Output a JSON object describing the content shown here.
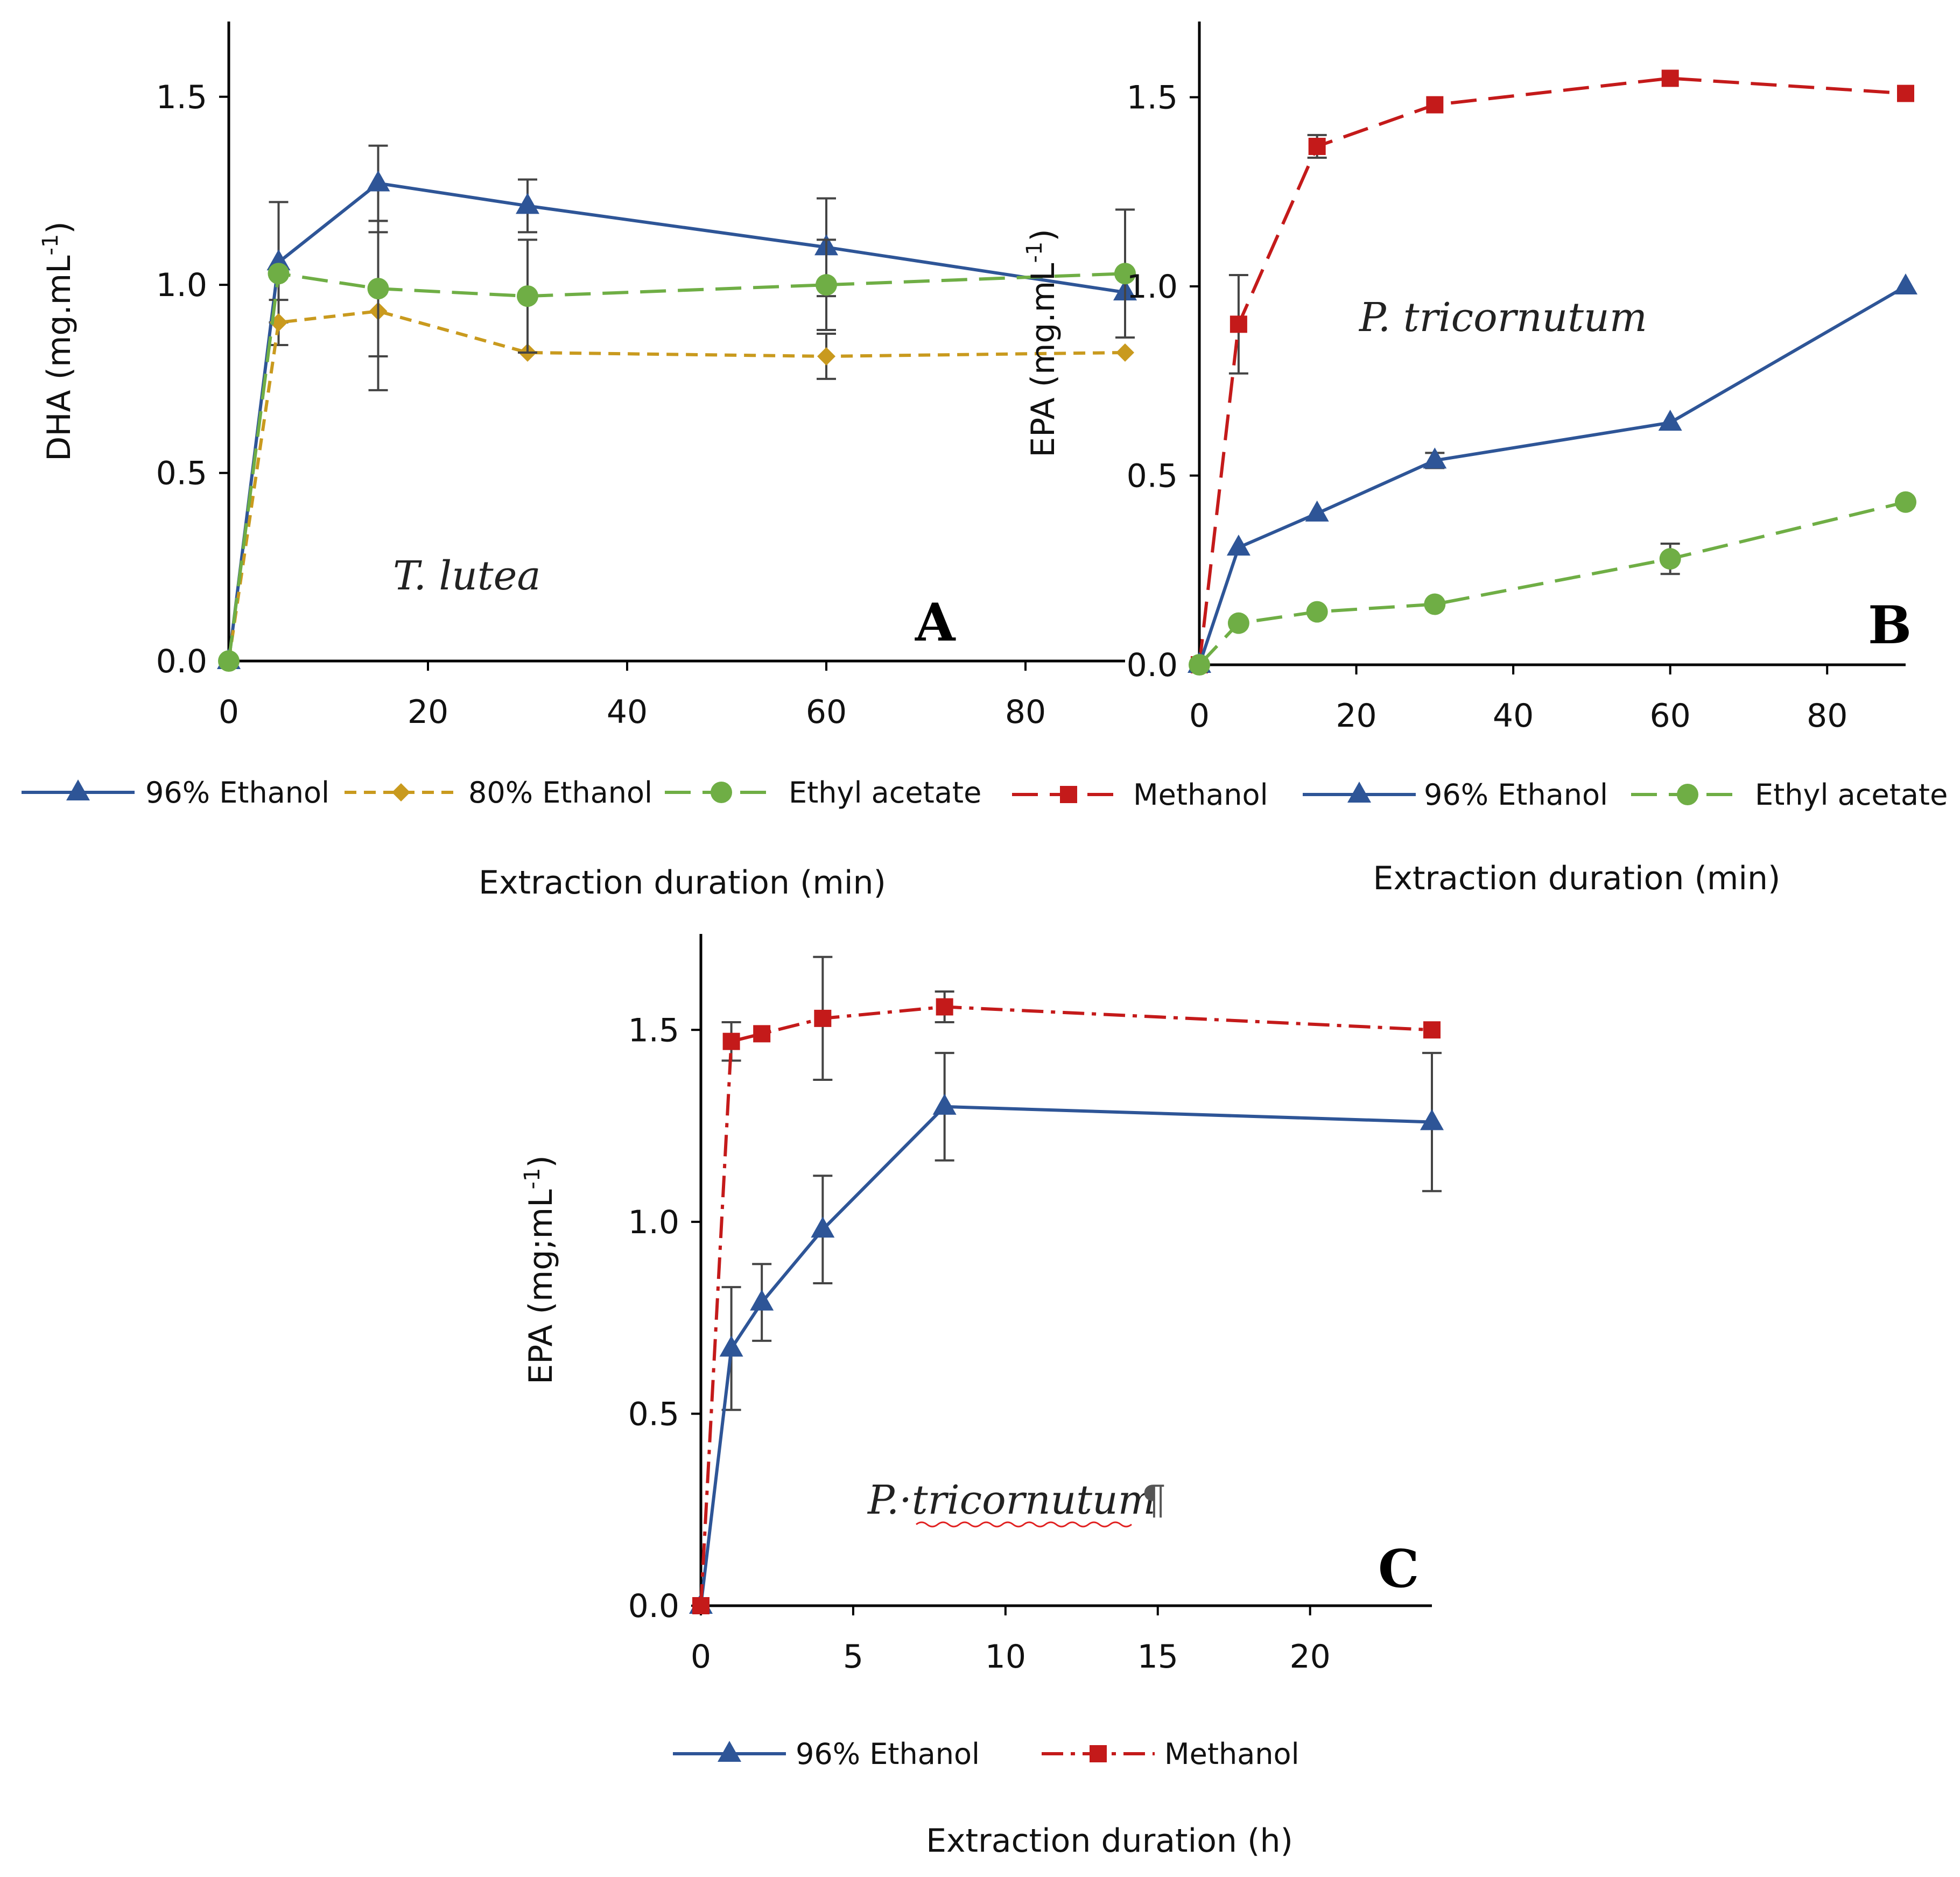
{
  "colors": {
    "blue": "#2e5597",
    "gold": "#c99a1e",
    "green": "#6fae45",
    "red": "#c41a1a",
    "errorbar": "#444444",
    "axis": "#000000"
  },
  "chart_data": [
    {
      "panel": "A",
      "type": "line",
      "annotation": "T. lutea",
      "xlabel": "Extraction duration (min)",
      "ylabel": "DHA (mg.mL-1)",
      "ylabel_main": "DHA (mg.mL",
      "ylabel_sup": "-1",
      "ylabel_end": ")",
      "xlim": [
        0,
        90
      ],
      "ylim": [
        0,
        1.7
      ],
      "xticks": [
        0,
        20,
        40,
        60,
        80
      ],
      "xtick_labels": [
        "0",
        "20",
        "40",
        "60",
        "80"
      ],
      "yticks": [
        0,
        0.5,
        1.0,
        1.5
      ],
      "ytick_labels": [
        "0.0",
        "0.5",
        "1.0",
        "1.5"
      ],
      "x": [
        0,
        5,
        15,
        30,
        60,
        90
      ],
      "series": [
        {
          "name": "96% Ethanol",
          "color": "blue",
          "marker": "triangle",
          "dash": "solid",
          "values": [
            0,
            1.06,
            1.27,
            1.21,
            1.1,
            0.98
          ],
          "errors": [
            0,
            0.16,
            0.1,
            0.07,
            0.13,
            0.0
          ]
        },
        {
          "name": "80% Ethanol",
          "color": "gold",
          "marker": "diamond",
          "dash": "short",
          "values": [
            0,
            0.9,
            0.93,
            0.82,
            0.81,
            0.82
          ],
          "errors": [
            0,
            0.06,
            0.21,
            0.0,
            0.06,
            0.0
          ]
        },
        {
          "name": "Ethyl acetate",
          "color": "green",
          "marker": "circle",
          "dash": "long",
          "values": [
            0,
            1.03,
            0.99,
            0.97,
            1.0,
            1.03
          ],
          "errors": [
            0,
            0.0,
            0.18,
            0.15,
            0.12,
            0.17
          ]
        }
      ]
    },
    {
      "panel": "B",
      "type": "line",
      "annotation": "P. tricornutum",
      "xlabel": "Extraction duration (min)",
      "ylabel": "EPA (mg.mL-1)",
      "ylabel_main": "EPA (mg.mL",
      "ylabel_sup": "-1",
      "ylabel_end": ")",
      "xlim": [
        0,
        90
      ],
      "ylim": [
        0,
        1.7
      ],
      "xticks": [
        0,
        20,
        40,
        60,
        80
      ],
      "xtick_labels": [
        "0",
        "20",
        "40",
        "60",
        "80"
      ],
      "yticks": [
        0,
        0.5,
        1.0,
        1.5
      ],
      "ytick_labels": [
        "0.0",
        "0.5",
        "1.0",
        "1.5"
      ],
      "x": [
        0,
        5,
        15,
        30,
        60,
        90
      ],
      "series": [
        {
          "name": "Methanol",
          "color": "red",
          "marker": "square",
          "dash": "long",
          "values": [
            0,
            0.9,
            1.37,
            1.48,
            1.55,
            1.51
          ],
          "errors": [
            0,
            0.13,
            0.03,
            0.0,
            0.0,
            0.0
          ]
        },
        {
          "name": "96% Ethanol",
          "color": "blue",
          "marker": "triangle",
          "dash": "solid",
          "values": [
            0,
            0.31,
            0.4,
            0.54,
            0.64,
            1.0
          ],
          "errors": [
            0,
            0.0,
            0.0,
            0.02,
            0.0,
            0.0
          ]
        },
        {
          "name": "Ethyl acetate",
          "color": "green",
          "marker": "circle",
          "dash": "long",
          "values": [
            0,
            0.11,
            0.14,
            0.16,
            0.28,
            0.43
          ],
          "errors": [
            0,
            0.0,
            0.0,
            0.0,
            0.04,
            0.0
          ]
        }
      ]
    },
    {
      "panel": "C",
      "type": "line",
      "annotation": "P.·tricornutum",
      "annotation_mark": "¶",
      "xlabel": "Extraction duration (h)",
      "ylabel": "EPA (mg;mL-1)",
      "ylabel_main": "EPA (mg;mL",
      "ylabel_sup": "-1",
      "ylabel_end": ")",
      "xlim": [
        0,
        24
      ],
      "ylim": [
        0,
        1.75
      ],
      "xticks": [
        0,
        5,
        10,
        15,
        20
      ],
      "xtick_labels": [
        "0",
        "5",
        "10",
        "15",
        "20"
      ],
      "yticks": [
        0,
        0.5,
        1.0,
        1.5
      ],
      "ytick_labels": [
        "0.0",
        "0.5",
        "1.0",
        "1.5"
      ],
      "x": [
        0,
        1,
        2,
        4,
        8,
        24
      ],
      "series": [
        {
          "name": "96% Ethanol",
          "color": "blue",
          "marker": "triangle",
          "dash": "solid",
          "values": [
            0,
            0.67,
            0.79,
            0.98,
            1.3,
            1.26
          ],
          "errors": [
            0,
            0.16,
            0.1,
            0.14,
            0.14,
            0.18
          ]
        },
        {
          "name": "Methanol",
          "color": "red",
          "marker": "square",
          "dash": "dashdot",
          "values": [
            0,
            1.47,
            1.49,
            1.53,
            1.56,
            1.5
          ],
          "errors": [
            0,
            0.05,
            0.0,
            0.16,
            0.04,
            0.0
          ]
        }
      ]
    }
  ]
}
